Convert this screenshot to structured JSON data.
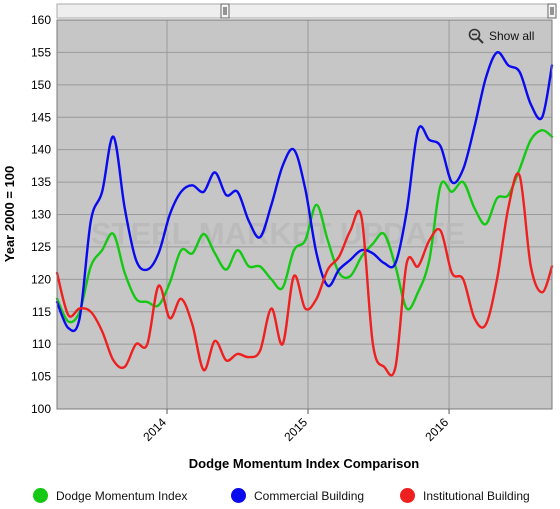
{
  "toolbar": {
    "show_all_label": "Show all",
    "show_all_icon": "zoom-out-icon"
  },
  "colors": {
    "plot_bg": "#c6c6c6",
    "grid": "#9a9a9a",
    "green": "#14c814",
    "blue": "#0a0aee",
    "red": "#ee2020",
    "watermark": "#b8b8b8"
  },
  "watermark": {
    "text": "STEEL MARKET UPDATE"
  },
  "chart_data": {
    "type": "line",
    "title": "",
    "xlabel": "Dodge Momentum Index Comparison",
    "ylabel": "Year 2000 = 100",
    "ylim": [
      100,
      160
    ],
    "yticks": [
      100,
      105,
      110,
      115,
      120,
      125,
      130,
      135,
      140,
      145,
      150,
      155,
      160
    ],
    "xlim": [
      2013.22,
      2016.73
    ],
    "xticks": [
      {
        "value": 2014.0,
        "label": "2014"
      },
      {
        "value": 2015.0,
        "label": "2015"
      },
      {
        "value": 2016.0,
        "label": "2016"
      }
    ],
    "grid": true,
    "legend_position": "bottom",
    "series": [
      {
        "name": "Dodge Momentum Index",
        "color": "#14c814",
        "x": [
          2013.22,
          2013.3,
          2013.38,
          2013.46,
          2013.54,
          2013.62,
          2013.7,
          2013.78,
          2013.86,
          2013.94,
          2014.02,
          2014.1,
          2014.18,
          2014.26,
          2014.34,
          2014.42,
          2014.5,
          2014.58,
          2014.66,
          2014.74,
          2014.82,
          2014.9,
          2014.98,
          2015.06,
          2015.14,
          2015.22,
          2015.3,
          2015.38,
          2015.46,
          2015.54,
          2015.62,
          2015.7,
          2015.78,
          2015.86,
          2015.94,
          2016.02,
          2016.1,
          2016.18,
          2016.26,
          2016.34,
          2016.42,
          2016.5,
          2016.58,
          2016.66,
          2016.73
        ],
        "values": [
          117,
          113.5,
          115,
          122,
          124.5,
          127,
          121,
          117,
          116.5,
          116,
          119.5,
          124.5,
          124,
          127,
          124,
          121.5,
          124.5,
          122,
          122,
          120,
          118.7,
          124.5,
          126,
          131.5,
          126,
          121,
          120.5,
          123.5,
          125.5,
          127,
          122,
          115.5,
          118,
          123,
          134.5,
          133.5,
          135,
          131,
          128.5,
          132.5,
          133,
          137,
          141.5,
          143,
          142
        ]
      },
      {
        "name": "Commercial Building",
        "color": "#0a0aee",
        "x": [
          2013.22,
          2013.3,
          2013.38,
          2013.46,
          2013.54,
          2013.62,
          2013.7,
          2013.78,
          2013.86,
          2013.94,
          2014.02,
          2014.1,
          2014.18,
          2014.26,
          2014.34,
          2014.42,
          2014.5,
          2014.58,
          2014.66,
          2014.74,
          2014.82,
          2014.9,
          2014.98,
          2015.06,
          2015.14,
          2015.22,
          2015.3,
          2015.38,
          2015.46,
          2015.54,
          2015.62,
          2015.7,
          2015.78,
          2015.86,
          2015.94,
          2016.02,
          2016.1,
          2016.18,
          2016.26,
          2016.34,
          2016.42,
          2016.5,
          2016.58,
          2016.66,
          2016.73
        ],
        "values": [
          116.5,
          112.5,
          114,
          129,
          133.5,
          142,
          131,
          123,
          121.5,
          124,
          130,
          133.5,
          134.5,
          133.5,
          136.5,
          133,
          133.5,
          129,
          126.5,
          131.5,
          137.5,
          140,
          134,
          124,
          119,
          121.5,
          123,
          124.5,
          124,
          122.5,
          122.5,
          130.5,
          143,
          141.5,
          140.5,
          135,
          137,
          143.5,
          151,
          155,
          153,
          152,
          147,
          145,
          153
        ]
      },
      {
        "name": "Institutional Building",
        "color": "#ee2020",
        "x": [
          2013.22,
          2013.3,
          2013.38,
          2013.46,
          2013.54,
          2013.62,
          2013.7,
          2013.78,
          2013.86,
          2013.94,
          2014.02,
          2014.1,
          2014.18,
          2014.26,
          2014.34,
          2014.42,
          2014.5,
          2014.58,
          2014.66,
          2014.74,
          2014.82,
          2014.9,
          2014.98,
          2015.06,
          2015.14,
          2015.22,
          2015.3,
          2015.38,
          2015.46,
          2015.54,
          2015.62,
          2015.7,
          2015.78,
          2015.86,
          2015.94,
          2016.02,
          2016.1,
          2016.18,
          2016.26,
          2016.34,
          2016.42,
          2016.5,
          2016.58,
          2016.66,
          2016.73
        ],
        "values": [
          121,
          114.5,
          115.5,
          115,
          112,
          107.5,
          106.5,
          110,
          110,
          119,
          114,
          117,
          113,
          106,
          110.5,
          107.5,
          108.5,
          108,
          109,
          115.5,
          110,
          120.5,
          115.5,
          117,
          121.5,
          123.5,
          127.5,
          129.5,
          110,
          106.5,
          106.5,
          122.5,
          122,
          126,
          127.5,
          121,
          120,
          114,
          113,
          120,
          131,
          136,
          122,
          118,
          122
        ]
      }
    ]
  },
  "legend": [
    {
      "label": "Dodge Momentum Index",
      "color": "#14c814"
    },
    {
      "label": "Commercial Building",
      "color": "#0a0aee"
    },
    {
      "label": "Institutional Building",
      "color": "#ee2020"
    }
  ]
}
